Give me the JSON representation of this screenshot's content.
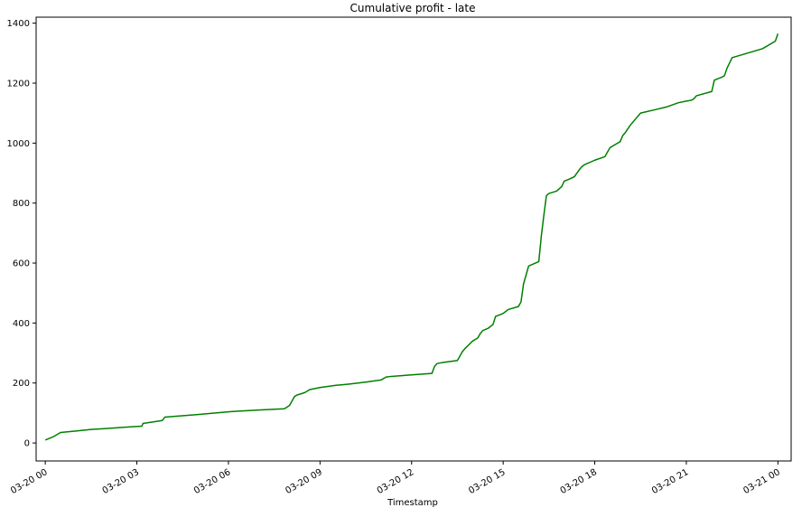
{
  "chart_data": {
    "type": "line",
    "title": "Cumulative profit - late",
    "xlabel": "Timestamp",
    "ylabel": "",
    "grid": false,
    "xlim": [
      "2023-03-19T23:42:00",
      "2023-03-21T00:26:00"
    ],
    "ylim": [
      -60,
      1420
    ],
    "x_ticks": [
      "03-20 00",
      "03-20 03",
      "03-20 06",
      "03-20 09",
      "03-20 12",
      "03-20 15",
      "03-20 18",
      "03-20 21",
      "03-21 00"
    ],
    "y_ticks": [
      0,
      200,
      400,
      600,
      800,
      1000,
      1200,
      1400
    ],
    "series": [
      {
        "color": "#008000",
        "x": [
          "2023-03-20T00:00",
          "2023-03-20T00:15",
          "2023-03-20T00:30",
          "2023-03-20T01:00",
          "2023-03-20T01:30",
          "2023-03-20T02:00",
          "2023-03-20T02:30",
          "2023-03-20T03:10",
          "2023-03-20T03:12",
          "2023-03-20T03:50",
          "2023-03-20T03:55",
          "2023-03-20T05:00",
          "2023-03-20T06:00",
          "2023-03-20T06:20",
          "2023-03-20T07:00",
          "2023-03-20T07:50",
          "2023-03-20T08:00",
          "2023-03-20T08:10",
          "2023-03-20T08:15",
          "2023-03-20T08:30",
          "2023-03-20T08:40",
          "2023-03-20T09:00",
          "2023-03-20T09:30",
          "2023-03-20T10:00",
          "2023-03-20T10:30",
          "2023-03-20T11:00",
          "2023-03-20T11:10",
          "2023-03-20T11:20",
          "2023-03-20T12:00",
          "2023-03-20T12:40",
          "2023-03-20T12:45",
          "2023-03-20T12:50",
          "2023-03-20T13:00",
          "2023-03-20T13:30",
          "2023-03-20T13:40",
          "2023-03-20T13:45",
          "2023-03-20T14:00",
          "2023-03-20T14:10",
          "2023-03-20T14:15",
          "2023-03-20T14:20",
          "2023-03-20T14:30",
          "2023-03-20T14:40",
          "2023-03-20T14:45",
          "2023-03-20T15:00",
          "2023-03-20T15:10",
          "2023-03-20T15:30",
          "2023-03-20T15:35",
          "2023-03-20T15:40",
          "2023-03-20T15:50",
          "2023-03-20T16:10",
          "2023-03-20T16:15",
          "2023-03-20T16:20",
          "2023-03-20T16:25",
          "2023-03-20T16:30",
          "2023-03-20T16:45",
          "2023-03-20T16:55",
          "2023-03-20T17:00",
          "2023-03-20T17:10",
          "2023-03-20T17:20",
          "2023-03-20T17:30",
          "2023-03-20T17:35",
          "2023-03-20T17:40",
          "2023-03-20T18:00",
          "2023-03-20T18:20",
          "2023-03-20T18:30",
          "2023-03-20T18:40",
          "2023-03-20T18:50",
          "2023-03-20T18:55",
          "2023-03-20T19:00",
          "2023-03-20T19:10",
          "2023-03-20T19:30",
          "2023-03-20T20:00",
          "2023-03-20T20:20",
          "2023-03-20T20:45",
          "2023-03-20T21:00",
          "2023-03-20T21:10",
          "2023-03-20T21:15",
          "2023-03-20T21:20",
          "2023-03-20T21:50",
          "2023-03-20T21:55",
          "2023-03-20T22:10",
          "2023-03-20T22:15",
          "2023-03-20T22:20",
          "2023-03-20T22:30",
          "2023-03-20T23:30",
          "2023-03-20T23:55",
          "2023-03-21T00:00"
        ],
        "y": [
          10,
          20,
          35,
          40,
          45,
          48,
          52,
          56,
          65,
          75,
          86,
          95,
          104,
          106,
          110,
          114,
          125,
          155,
          160,
          168,
          178,
          185,
          192,
          197,
          203,
          210,
          220,
          222,
          227,
          232,
          255,
          265,
          268,
          275,
          305,
          315,
          340,
          350,
          365,
          375,
          382,
          395,
          422,
          432,
          445,
          455,
          470,
          530,
          590,
          605,
          690,
          760,
          825,
          832,
          840,
          855,
          873,
          880,
          888,
          912,
          922,
          928,
          943,
          955,
          985,
          995,
          1005,
          1025,
          1035,
          1060,
          1100,
          1112,
          1120,
          1135,
          1140,
          1143,
          1148,
          1158,
          1172,
          1210,
          1220,
          1225,
          1250,
          1285,
          1315,
          1340,
          1365
        ]
      }
    ]
  }
}
